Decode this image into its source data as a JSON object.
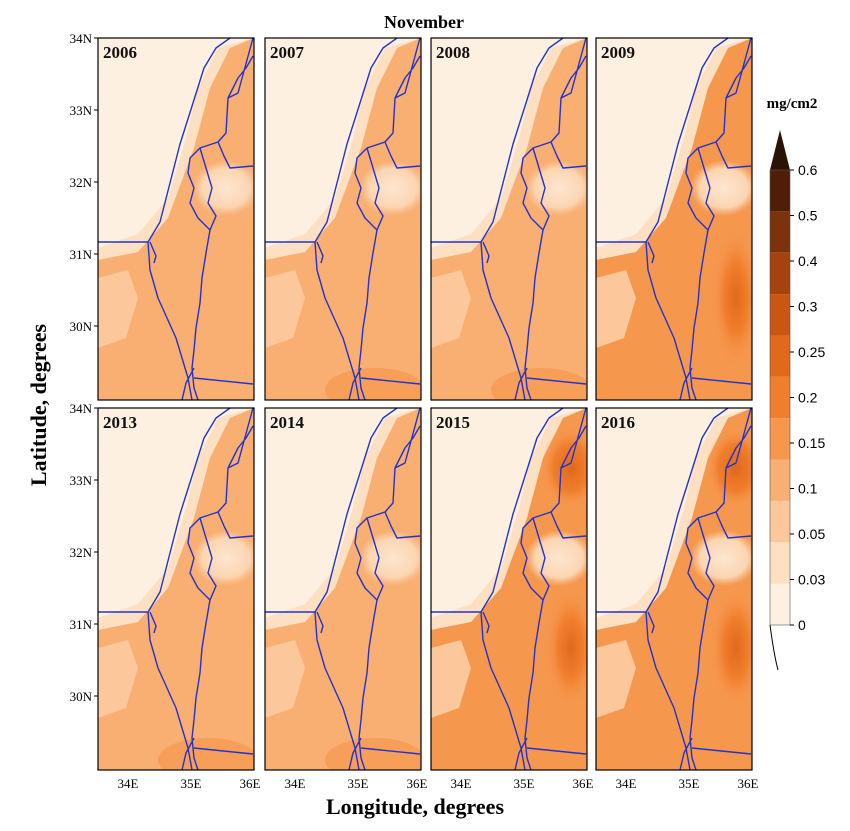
{
  "title": "November",
  "xlabel": "Longitude,  degrees",
  "ylabel": "Latitude,  degrees",
  "colorbar": {
    "unit": "mg/cm2",
    "levels": [
      "0",
      "0.03",
      "0.05",
      "0.1",
      "0.15",
      "0.2",
      "0.25",
      "0.3",
      "0.4",
      "0.5",
      "0.6"
    ],
    "colors": [
      "#fdf0e0",
      "#fddfc2",
      "#fcc79a",
      "#f9ae72",
      "#f6974e",
      "#f07f2d",
      "#e0691b",
      "#c95612",
      "#a5430e",
      "#7c320b",
      "#4e1f06"
    ]
  },
  "x_ticks": [
    "34E",
    "35E",
    "36E"
  ],
  "y_ticks": [
    "34N",
    "33N",
    "32N",
    "31N",
    "30N"
  ],
  "panels": [
    {
      "year": "2006"
    },
    {
      "year": "2007"
    },
    {
      "year": "2008"
    },
    {
      "year": "2009"
    },
    {
      "year": "2013"
    },
    {
      "year": "2014"
    },
    {
      "year": "2015"
    },
    {
      "year": "2016"
    }
  ]
}
